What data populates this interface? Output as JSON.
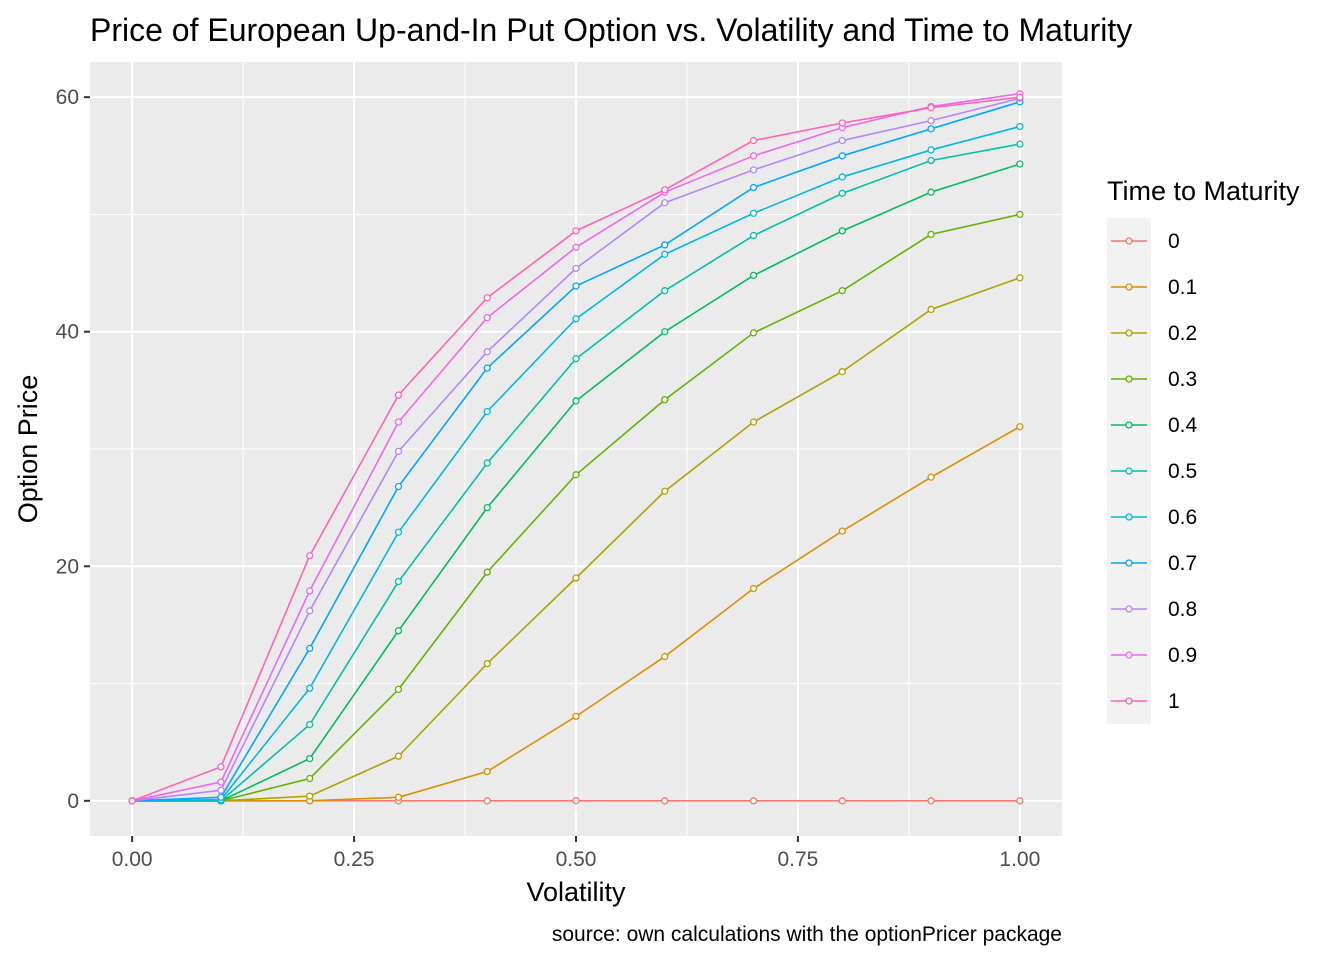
{
  "chart_data": {
    "type": "line",
    "title": "Price of European Up-and-In Put Option vs. Volatility and Time to Maturity",
    "xlabel": "Volatility",
    "ylabel": "Option Price",
    "caption": "source: own calculations with the optionPricer package",
    "xlim": [
      -0.0475,
      1.0475
    ],
    "ylim": [
      -3.0,
      63.0
    ],
    "x_ticks": [
      0.0,
      0.25,
      0.5,
      0.75,
      1.0
    ],
    "x_tick_labels": [
      "0.00",
      "0.25",
      "0.50",
      "0.75",
      "1.00"
    ],
    "y_ticks": [
      0,
      20,
      40,
      60
    ],
    "y_tick_labels": [
      "0",
      "20",
      "40",
      "60"
    ],
    "grid": true,
    "legend": {
      "title": "Time to Maturity",
      "position": "right"
    },
    "x": [
      0.0,
      0.1,
      0.2,
      0.3,
      0.4,
      0.5,
      0.6,
      0.7,
      0.8,
      0.9,
      1.0
    ],
    "series": [
      {
        "name": "0",
        "color": "#F8766D",
        "values": [
          0,
          0,
          0,
          0,
          0,
          0,
          0,
          0,
          0,
          0,
          0
        ]
      },
      {
        "name": "0.1",
        "color": "#DB8E00",
        "values": [
          0,
          0,
          0,
          0.3,
          2.5,
          7.2,
          12.3,
          18.1,
          23.0,
          27.6,
          31.9
        ]
      },
      {
        "name": "0.2",
        "color": "#AEA200",
        "values": [
          0,
          0,
          0.4,
          3.8,
          11.7,
          19.0,
          26.4,
          32.3,
          36.6,
          41.9,
          44.6
        ]
      },
      {
        "name": "0.3",
        "color": "#64B200",
        "values": [
          0,
          0,
          1.9,
          9.5,
          19.5,
          27.8,
          34.2,
          39.9,
          43.5,
          48.3,
          50.0
        ]
      },
      {
        "name": "0.4",
        "color": "#00BD5C",
        "values": [
          0,
          0,
          3.6,
          14.5,
          25.0,
          34.1,
          40.0,
          44.8,
          48.6,
          51.9,
          54.3
        ]
      },
      {
        "name": "0.5",
        "color": "#00C1A7",
        "values": [
          0,
          0,
          6.5,
          18.7,
          28.8,
          37.7,
          43.5,
          48.2,
          51.8,
          54.6,
          56.0
        ]
      },
      {
        "name": "0.6",
        "color": "#00BADE",
        "values": [
          0,
          0.1,
          9.6,
          22.9,
          33.2,
          41.1,
          46.6,
          50.1,
          53.2,
          55.5,
          57.5
        ]
      },
      {
        "name": "0.7",
        "color": "#00A6FF",
        "values": [
          0,
          0.3,
          13.0,
          26.8,
          36.9,
          43.9,
          47.4,
          52.3,
          55.0,
          57.3,
          59.6
        ]
      },
      {
        "name": "0.8",
        "color": "#B385FF",
        "values": [
          0,
          0.9,
          16.2,
          29.8,
          38.3,
          45.4,
          51.0,
          53.8,
          56.3,
          58.0,
          59.9
        ]
      },
      {
        "name": "0.9",
        "color": "#EF67EB",
        "values": [
          0,
          1.6,
          17.9,
          32.3,
          41.2,
          47.2,
          51.9,
          55.0,
          57.4,
          59.2,
          60.3
        ]
      },
      {
        "name": "1",
        "color": "#FF63B6",
        "values": [
          0,
          2.9,
          20.9,
          34.6,
          42.9,
          48.6,
          52.1,
          56.3,
          57.8,
          59.1,
          60.0
        ]
      }
    ],
    "colors": {
      "panel_background": "#EBEBEB",
      "grid_major": "#FFFFFF",
      "legend_key_background": "#F2F2F2"
    }
  }
}
